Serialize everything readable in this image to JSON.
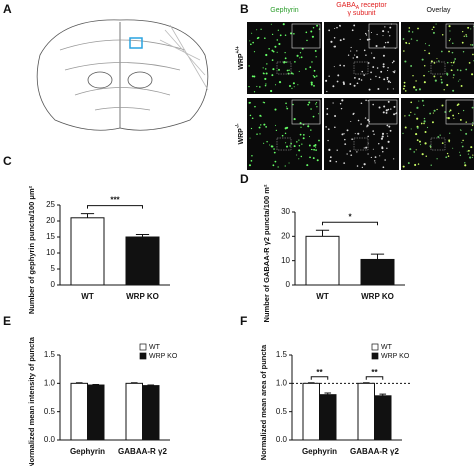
{
  "panel_labels": [
    "A",
    "B",
    "C",
    "D",
    "E",
    "F"
  ],
  "micrograph": {
    "columns": [
      {
        "main": "Gephyrin"
      },
      {
        "main": "GABA",
        "sub": "A",
        "rest": " receptor",
        "line2": "γ subunit"
      },
      {
        "main": "Overlay"
      }
    ],
    "rows": [
      {
        "main": "WRP",
        "sup": "+/+"
      },
      {
        "main": "WRP",
        "sup": "-/-"
      }
    ]
  },
  "chart_data": [
    {
      "type": "bar",
      "ylabel": "Number of gephyrin puncta/100 μm²",
      "categories": [
        "WT",
        "WRP KO"
      ],
      "values": [
        21,
        15
      ],
      "errors": [
        1.3,
        0.8
      ],
      "colors": [
        "#ffffff",
        "#111111"
      ],
      "ylim": [
        0,
        25
      ],
      "yticks": [
        0,
        5,
        10,
        15,
        20,
        25
      ],
      "annotations": [
        "***"
      ]
    },
    {
      "type": "bar",
      "ylabel": "Number of GABAA-R γ2 puncta/100 m²",
      "categories": [
        "WT",
        "WRP KO"
      ],
      "values": [
        20,
        10.5
      ],
      "errors": [
        2.5,
        2.2
      ],
      "colors": [
        "#ffffff",
        "#111111"
      ],
      "ylim": [
        0,
        30
      ],
      "yticks": [
        0,
        10,
        20,
        30
      ],
      "annotations": [
        "*"
      ]
    },
    {
      "type": "bar",
      "ylabel": "Normalized mean intensity of puncta",
      "categories": [
        "Gephyrin",
        "GABAA-R γ2"
      ],
      "series": [
        {
          "name": "WT",
          "color": "#ffffff",
          "values": [
            1.0,
            1.0
          ],
          "errors": [
            0.01,
            0.01
          ]
        },
        {
          "name": "WRP KO",
          "color": "#111111",
          "values": [
            0.97,
            0.96
          ],
          "errors": [
            0.01,
            0.01
          ]
        }
      ],
      "ylim": [
        0,
        1.5
      ],
      "yticks": [
        {
          "value": 0,
          "label": "0.0"
        },
        {
          "value": 0.5,
          "label": "0.5"
        },
        {
          "value": 1,
          "label": "1.0"
        },
        {
          "value": 1.5,
          "label": "1.5"
        }
      ],
      "legend": "top-right"
    },
    {
      "type": "bar",
      "ylabel": "Normalized mean area of puncta",
      "categories": [
        "Gephyrin",
        "GABAA-R γ2"
      ],
      "series": [
        {
          "name": "WT",
          "color": "#ffffff",
          "values": [
            1.0,
            1.0
          ],
          "errors": [
            0.01,
            0.01
          ]
        },
        {
          "name": "WRP KO",
          "color": "#111111",
          "values": [
            0.8,
            0.78
          ],
          "errors": [
            0.03,
            0.03
          ]
        }
      ],
      "ylim": [
        0,
        1.5
      ],
      "yticks": [
        {
          "value": 0,
          "label": "0.0"
        },
        {
          "value": 0.5,
          "label": "0.5"
        },
        {
          "value": 1,
          "label": "1.0"
        },
        {
          "value": 1.5,
          "label": "1.5"
        }
      ],
      "refline": 1.0,
      "annotations": [
        "**",
        "**"
      ],
      "legend": "top-right"
    }
  ]
}
